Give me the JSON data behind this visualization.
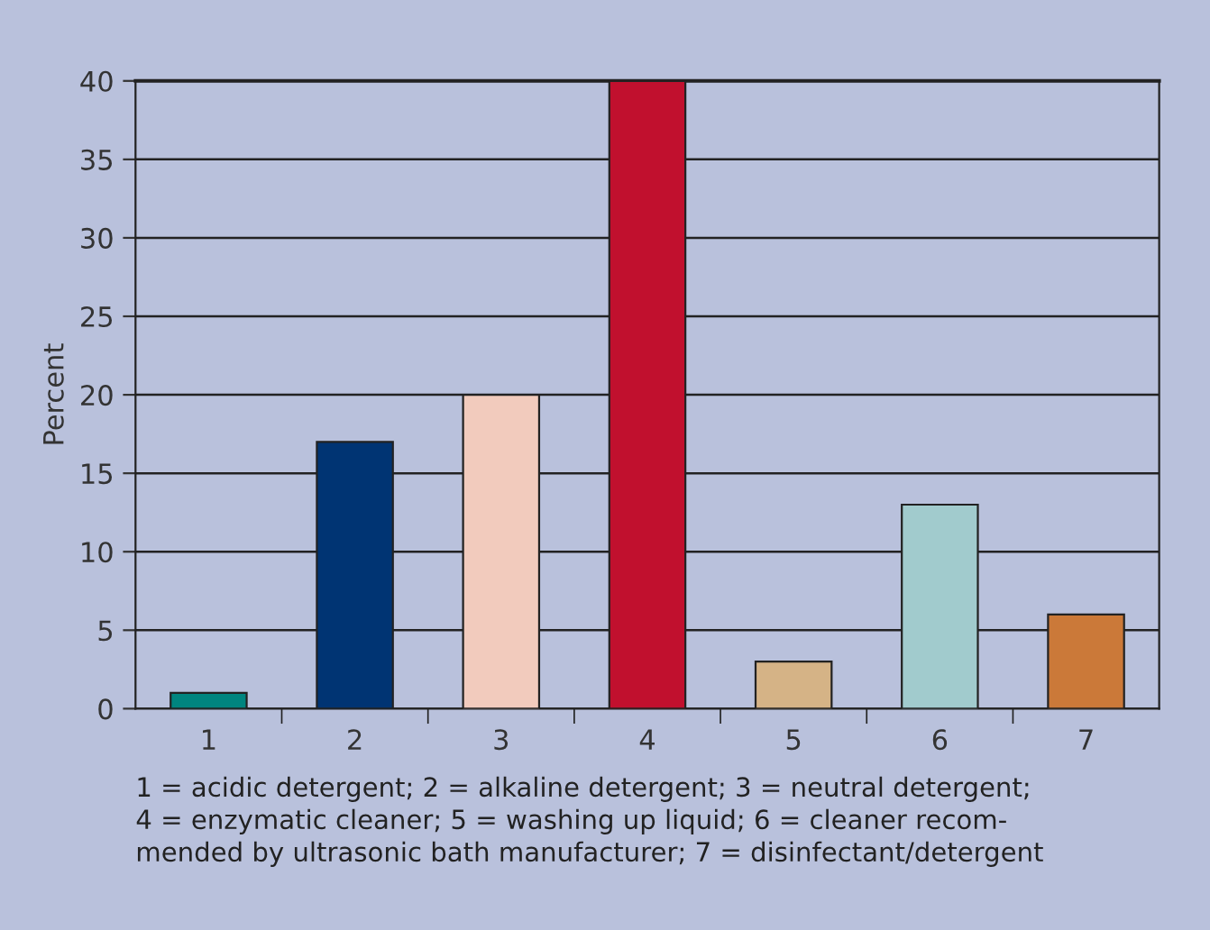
{
  "chart_data": {
    "type": "bar",
    "ylabel": "Percent",
    "categories": [
      "1",
      "2",
      "3",
      "4",
      "5",
      "6",
      "7"
    ],
    "values": [
      1,
      17,
      20,
      40,
      3,
      13,
      6
    ],
    "colors": [
      "#00857f",
      "#003473",
      "#f2cbbd",
      "#c1102e",
      "#d5b386",
      "#a1cbcd",
      "#cb7939"
    ],
    "ylim": [
      0,
      40
    ],
    "yticks": [
      0,
      5,
      10,
      15,
      20,
      25,
      30,
      35,
      40
    ],
    "grid": "y",
    "annotations": [
      "1 = acidic detergent; 2 = alkaline detergent; 3 = neutral detergent;\n4 = enzymatic cleaner; 5 = washing up liquid; 6 = cleaner recom-\nmended by ultrasonic bath manufacturer; 7 = disinfectant/detergent"
    ]
  }
}
